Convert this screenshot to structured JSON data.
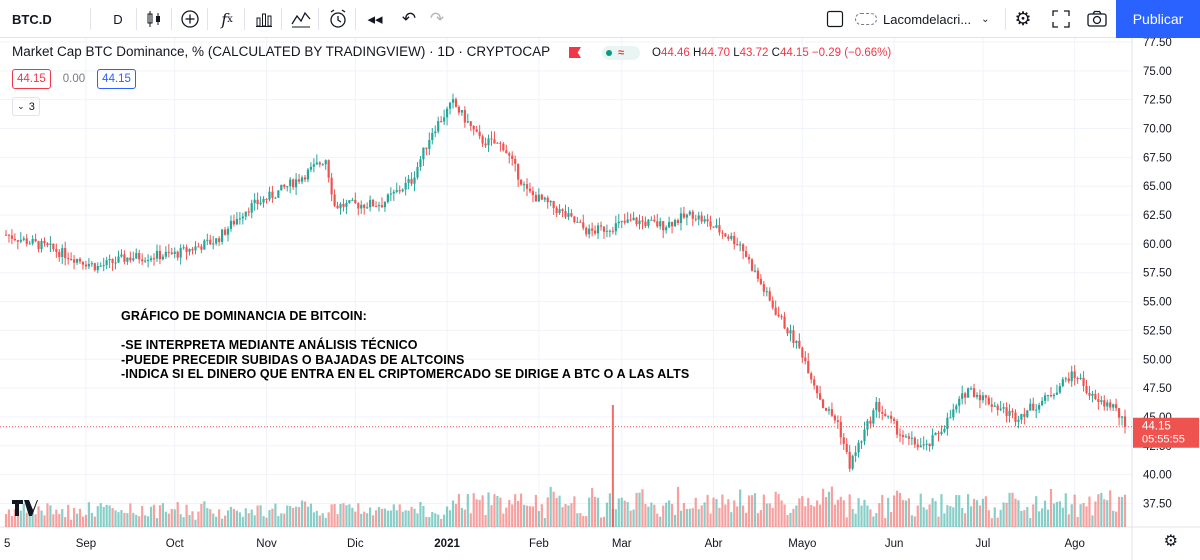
{
  "toolbar": {
    "symbol": "BTC.D",
    "interval": "D",
    "layout_name": "Lacomdelacri...",
    "publish_label": "Publicar"
  },
  "legend": {
    "title": "Market Cap BTC Dominance, % (CALCULATED BY TRADINGVIEW) · 1D · CRYPTOCAP",
    "open_label": "O",
    "open": "44.46",
    "high_label": "H",
    "high": "44.70",
    "low_label": "L",
    "low": "43.72",
    "close_label": "C",
    "close": "44.15",
    "change": "−0.29 (−0.66%)",
    "bid": "44.15",
    "spread": "0.00",
    "ask": "44.15",
    "indicators_count": "3"
  },
  "annotation": {
    "line1": "GRÁFICO DE DOMINANCIA DE BITCOIN:",
    "line2": "-SE INTERPRETA MEDIANTE ANÁLISIS TÉCNICO",
    "line3": "-PUEDE PRECEDIR SUBIDAS O BAJADAS DE ALTCOINS",
    "line4": "-INDICA SI EL DINERO QUE ENTRA EN EL CRIPTOMERCADO SE DIRIGE A BTC O A LAS ALTS"
  },
  "price_label": {
    "value": "44.15",
    "countdown": "05:55:55"
  },
  "colors": {
    "up": "#26a69a",
    "down": "#ef5350",
    "accent": "#2962ff",
    "grid": "#f0f3fa"
  },
  "chart_data": {
    "type": "candlestick",
    "title": "Market Cap BTC Dominance, % (CALCULATED BY TRADINGVIEW)",
    "ylim": [
      36.5,
      77.5
    ],
    "y_ticks": [
      "77.50",
      "75.00",
      "72.50",
      "70.00",
      "67.50",
      "65.00",
      "62.50",
      "60.00",
      "57.50",
      "55.00",
      "52.50",
      "50.00",
      "47.50",
      "45.00",
      "42.50",
      "40.00",
      "37.50"
    ],
    "x_ticks": [
      "5",
      "Sep",
      "Oct",
      "Nov",
      "Dic",
      "2021",
      "Feb",
      "Mar",
      "Abr",
      "Mayo",
      "Jun",
      "Jul",
      "Ago"
    ],
    "start_date": "2020-08-05",
    "end_date": "2021-08-18",
    "last_price": 44.15,
    "close_path": [
      [
        "2020-08-05",
        60.8
      ],
      [
        "2020-08-20",
        59.6
      ],
      [
        "2020-09-05",
        58.0
      ],
      [
        "2020-09-15",
        58.8
      ],
      [
        "2020-10-01",
        59.1
      ],
      [
        "2020-10-15",
        60.3
      ],
      [
        "2020-10-25",
        63.0
      ],
      [
        "2020-11-05",
        64.5
      ],
      [
        "2020-11-15",
        66.2
      ],
      [
        "2020-11-21",
        67.4
      ],
      [
        "2020-11-24",
        63.3
      ],
      [
        "2020-12-10",
        63.5
      ],
      [
        "2020-12-20",
        65.5
      ],
      [
        "2020-12-27",
        69.8
      ],
      [
        "2021-01-03",
        72.2
      ],
      [
        "2021-01-08",
        70.5
      ],
      [
        "2021-01-12",
        69.0
      ],
      [
        "2021-01-20",
        68.5
      ],
      [
        "2021-01-28",
        64.5
      ],
      [
        "2021-02-07",
        63.0
      ],
      [
        "2021-02-18",
        61.0
      ],
      [
        "2021-03-05",
        62.0
      ],
      [
        "2021-03-15",
        61.6
      ],
      [
        "2021-03-25",
        62.6
      ],
      [
        "2021-04-10",
        60.0
      ],
      [
        "2021-04-20",
        55.0
      ],
      [
        "2021-05-01",
        50.5
      ],
      [
        "2021-05-08",
        46.0
      ],
      [
        "2021-05-13",
        44.5
      ],
      [
        "2021-05-17",
        40.8
      ],
      [
        "2021-05-26",
        46.0
      ],
      [
        "2021-06-05",
        43.0
      ],
      [
        "2021-06-12",
        42.3
      ],
      [
        "2021-06-20",
        45.0
      ],
      [
        "2021-06-26",
        47.5
      ],
      [
        "2021-07-05",
        46.0
      ],
      [
        "2021-07-12",
        45.0
      ],
      [
        "2021-07-22",
        46.5
      ],
      [
        "2021-07-30",
        48.5
      ],
      [
        "2021-08-02",
        48.5
      ],
      [
        "2021-08-08",
        46.3
      ],
      [
        "2021-08-14",
        46.0
      ],
      [
        "2021-08-18",
        44.15
      ]
    ]
  }
}
